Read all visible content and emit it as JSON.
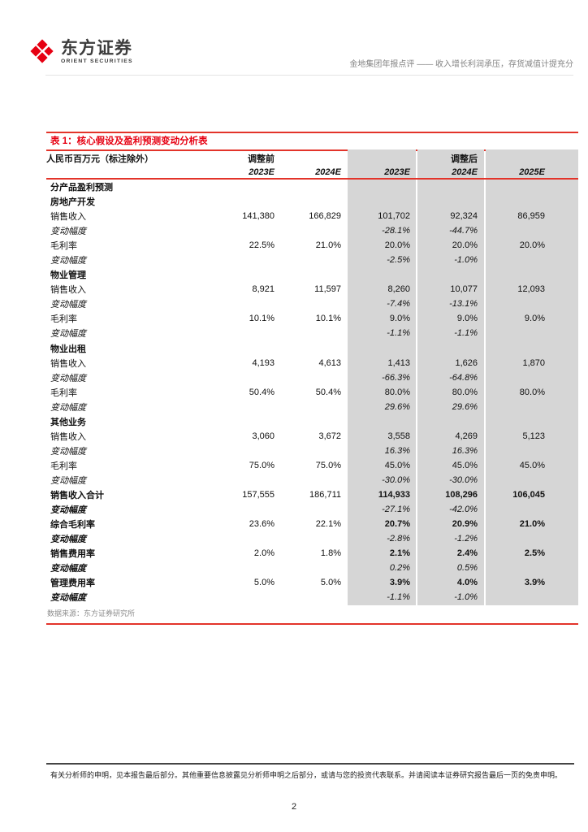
{
  "header": {
    "logo_cn": "东方证券",
    "logo_en": "ORIENT SECURITIES",
    "doc_title": "金地集团年报点评 —— 收入增长利润承压，存货减值计提充分"
  },
  "table": {
    "title": "表 1：核心假设及盈利预测变动分析表",
    "unit_label": "人民币百万元（标注除外）",
    "group_before": "调整前",
    "group_after": "调整后",
    "years": [
      "2023E",
      "2024E",
      "2023E",
      "2024E",
      "2025E"
    ],
    "rows": [
      {
        "label": "分产品盈利预测",
        "style": "section",
        "values": [
          "",
          "",
          "",
          "",
          ""
        ]
      },
      {
        "label": "房地产开发",
        "style": "section",
        "values": [
          "",
          "",
          "",
          "",
          ""
        ]
      },
      {
        "label": "销售收入",
        "style": "data",
        "values": [
          "141,380",
          "166,829",
          "101,702",
          "92,324",
          "86,959"
        ]
      },
      {
        "label": "变动幅度",
        "style": "delta",
        "values": [
          "",
          "",
          "-28.1%",
          "-44.7%",
          ""
        ]
      },
      {
        "label": "毛利率",
        "style": "data",
        "values": [
          "22.5%",
          "21.0%",
          "20.0%",
          "20.0%",
          "20.0%"
        ]
      },
      {
        "label": "变动幅度",
        "style": "delta",
        "values": [
          "",
          "",
          "-2.5%",
          "-1.0%",
          ""
        ]
      },
      {
        "label": "物业管理",
        "style": "section",
        "values": [
          "",
          "",
          "",
          "",
          ""
        ]
      },
      {
        "label": "销售收入",
        "style": "data",
        "values": [
          "8,921",
          "11,597",
          "8,260",
          "10,077",
          "12,093"
        ]
      },
      {
        "label": "变动幅度",
        "style": "delta",
        "values": [
          "",
          "",
          "-7.4%",
          "-13.1%",
          ""
        ]
      },
      {
        "label": "毛利率",
        "style": "data",
        "values": [
          "10.1%",
          "10.1%",
          "9.0%",
          "9.0%",
          "9.0%"
        ]
      },
      {
        "label": "变动幅度",
        "style": "delta",
        "values": [
          "",
          "",
          "-1.1%",
          "-1.1%",
          ""
        ]
      },
      {
        "label": "物业出租",
        "style": "section",
        "values": [
          "",
          "",
          "",
          "",
          ""
        ]
      },
      {
        "label": "销售收入",
        "style": "data",
        "values": [
          "4,193",
          "4,613",
          "1,413",
          "1,626",
          "1,870"
        ]
      },
      {
        "label": "变动幅度",
        "style": "delta",
        "values": [
          "",
          "",
          "-66.3%",
          "-64.8%",
          ""
        ]
      },
      {
        "label": "毛利率",
        "style": "data",
        "values": [
          "50.4%",
          "50.4%",
          "80.0%",
          "80.0%",
          "80.0%"
        ]
      },
      {
        "label": "变动幅度",
        "style": "delta",
        "values": [
          "",
          "",
          "29.6%",
          "29.6%",
          ""
        ]
      },
      {
        "label": "其他业务",
        "style": "section",
        "values": [
          "",
          "",
          "",
          "",
          ""
        ]
      },
      {
        "label": "销售收入",
        "style": "data",
        "values": [
          "3,060",
          "3,672",
          "3,558",
          "4,269",
          "5,123"
        ]
      },
      {
        "label": "变动幅度",
        "style": "delta",
        "values": [
          "",
          "",
          "16.3%",
          "16.3%",
          ""
        ]
      },
      {
        "label": "毛利率",
        "style": "data",
        "values": [
          "75.0%",
          "75.0%",
          "45.0%",
          "45.0%",
          "45.0%"
        ]
      },
      {
        "label": "变动幅度",
        "style": "delta",
        "values": [
          "",
          "",
          "-30.0%",
          "-30.0%",
          ""
        ]
      },
      {
        "label": "销售收入合计",
        "style": "total",
        "values": [
          "157,555",
          "186,711",
          "114,933",
          "108,296",
          "106,045"
        ]
      },
      {
        "label": "变动幅度",
        "style": "total-delta",
        "values": [
          "",
          "",
          "-27.1%",
          "-42.0%",
          ""
        ]
      },
      {
        "label": "综合毛利率",
        "style": "total",
        "values": [
          "23.6%",
          "22.1%",
          "20.7%",
          "20.9%",
          "21.0%"
        ]
      },
      {
        "label": "变动幅度",
        "style": "total-delta",
        "values": [
          "",
          "",
          "-2.8%",
          "-1.2%",
          ""
        ]
      },
      {
        "label": "销售费用率",
        "style": "total",
        "values": [
          "2.0%",
          "1.8%",
          "2.1%",
          "2.4%",
          "2.5%"
        ]
      },
      {
        "label": "变动幅度",
        "style": "total-delta",
        "values": [
          "",
          "",
          "0.2%",
          "0.5%",
          ""
        ]
      },
      {
        "label": "管理费用率",
        "style": "total",
        "values": [
          "5.0%",
          "5.0%",
          "3.9%",
          "4.0%",
          "3.9%"
        ]
      },
      {
        "label": "变动幅度",
        "style": "total-delta",
        "values": [
          "",
          "",
          "-1.1%",
          "-1.0%",
          ""
        ]
      }
    ],
    "source": "数据来源：东方证券研究所"
  },
  "footer": {
    "disclaimer": "有关分析师的申明，见本报告最后部分。其他重要信息披露见分析师申明之后部分，或请与您的投资代表联系。并请阅读本证券研究报告最后一页的免责申明。",
    "page_number": "2"
  },
  "colors": {
    "accent_red": "#e60012",
    "rule_red": "#e3342a",
    "band_gray": "#d6d6d6",
    "muted_gray": "#8c8c8c"
  }
}
